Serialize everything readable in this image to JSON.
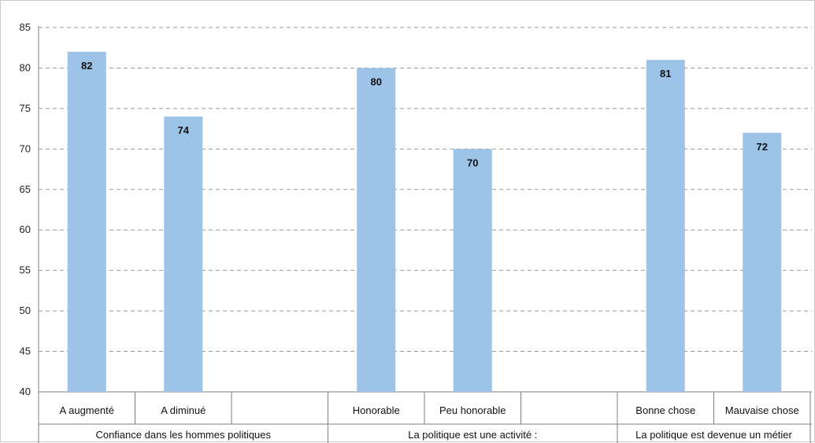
{
  "chart_data": {
    "type": "bar",
    "ylim": [
      40,
      85
    ],
    "yticks": [
      40,
      45,
      50,
      55,
      60,
      65,
      70,
      75,
      80,
      85
    ],
    "grid": true,
    "bar_color": "#9dc3e9",
    "groups": [
      {
        "label": "Confiance dans les hommes politiques",
        "categories": [
          "A augmenté",
          "A diminué",
          ""
        ],
        "values": [
          82,
          74,
          null
        ]
      },
      {
        "label": "La politique est une activité :",
        "categories": [
          "Honorable",
          "Peu honorable",
          ""
        ],
        "values": [
          80,
          70,
          null
        ]
      },
      {
        "label": "La politique est devenue un métier",
        "categories": [
          "Bonne chose",
          "Mauvaise chose"
        ],
        "values": [
          81,
          72
        ]
      }
    ]
  }
}
